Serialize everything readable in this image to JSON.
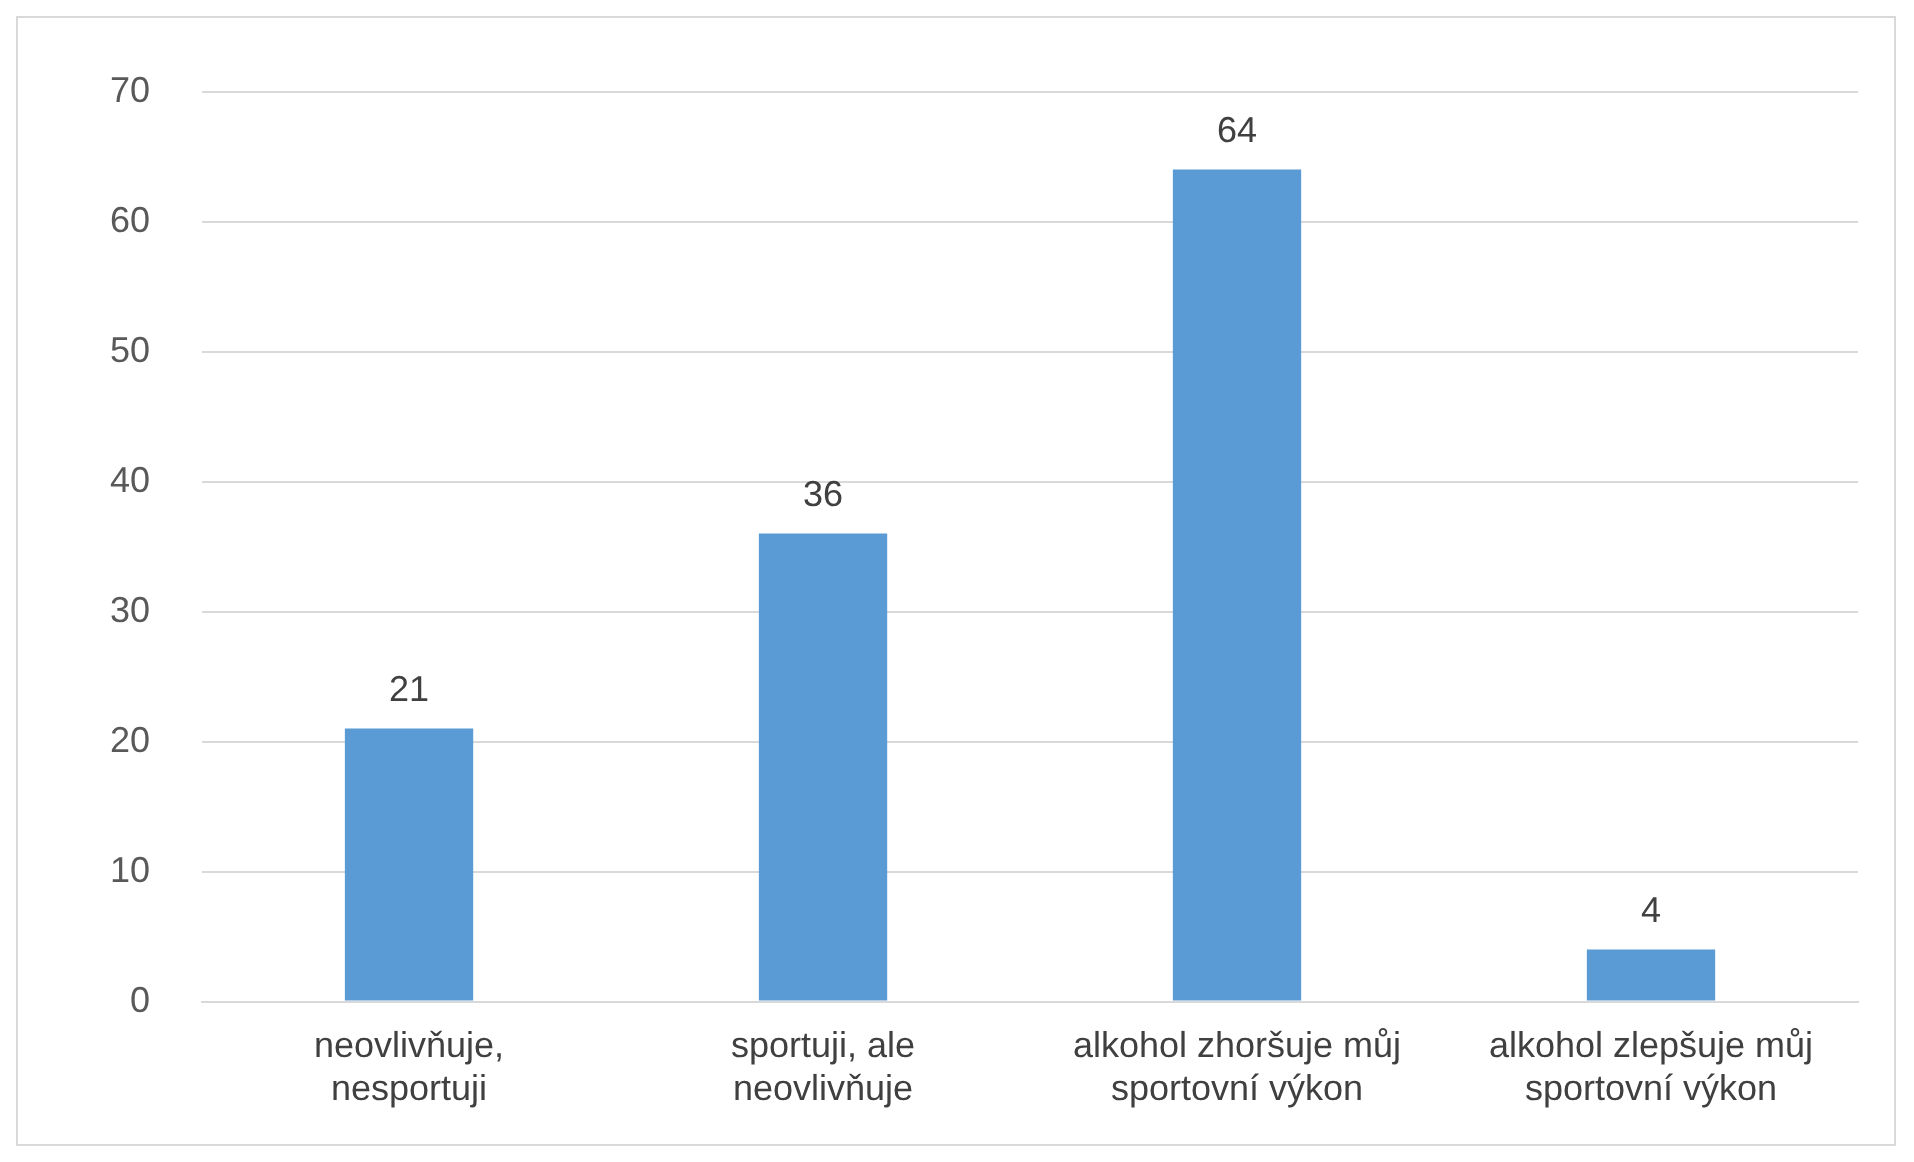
{
  "chart_data": {
    "type": "bar",
    "categories": [
      "neovlivňuje, nesportuji",
      "sportuji, ale neovlivňuje",
      "alkohol zhoršuje můj sportovní výkon",
      "alkohol zlepšuje můj sportovní výkon"
    ],
    "values": [
      21,
      36,
      64,
      4
    ],
    "color": "#5b9bd5",
    "ylim": [
      0,
      70
    ],
    "yticks": [
      0,
      10,
      20,
      30,
      40,
      50,
      60,
      70
    ],
    "grid": "y",
    "data_labels": true,
    "legend": false
  }
}
